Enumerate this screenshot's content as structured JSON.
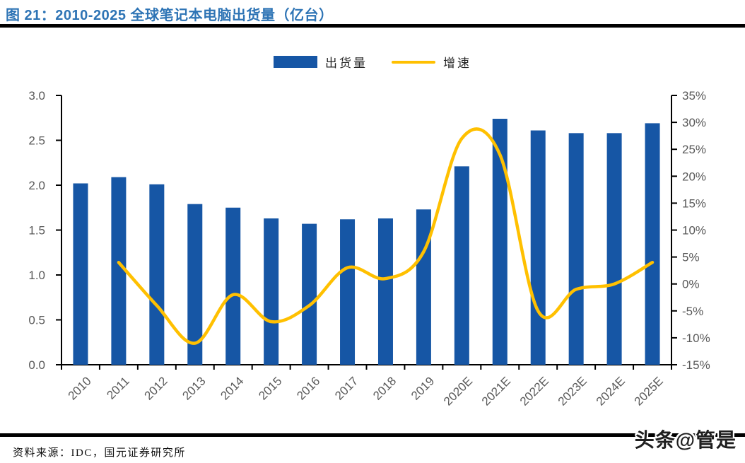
{
  "header": {
    "title": "图 21：2010-2025 全球笔记本电脑出货量（亿台）"
  },
  "legend": {
    "items": [
      {
        "label": "出货量",
        "type": "bar"
      },
      {
        "label": "增速",
        "type": "line"
      }
    ]
  },
  "colors": {
    "bar": "#1656A5",
    "line": "#FFC000",
    "title": "#2E74B5",
    "axis": "#000000",
    "tick_label": "#595959"
  },
  "chart_data": {
    "type": "combo_bar_line",
    "title": "2010-2025 全球笔记本电脑出货量（亿台）",
    "categories": [
      "2010",
      "2011",
      "2012",
      "2013",
      "2014",
      "2015",
      "2016",
      "2017",
      "2018",
      "2019",
      "2020E",
      "2021E",
      "2022E",
      "2023E",
      "2024E",
      "2025E"
    ],
    "series": [
      {
        "name": "出货量",
        "type": "bar",
        "axis": "left",
        "color": "#1656A5",
        "unit": "亿台",
        "values": [
          2.02,
          2.09,
          2.01,
          1.79,
          1.75,
          1.63,
          1.57,
          1.62,
          1.63,
          1.73,
          2.21,
          2.74,
          2.61,
          2.58,
          2.58,
          2.69
        ]
      },
      {
        "name": "增速",
        "type": "line",
        "axis": "right",
        "color": "#FFC000",
        "unit": "%",
        "values": [
          null,
          4,
          -4,
          -11,
          -2,
          -7,
          -4,
          3,
          1,
          6,
          27,
          24,
          -5,
          -1,
          0,
          4
        ]
      }
    ],
    "left_axis": {
      "min": 0,
      "max": 3,
      "tick_labels": [
        "3.0",
        "2.5",
        "2.0",
        "1.5",
        "1.0",
        "0.5",
        "0.0"
      ]
    },
    "right_axis": {
      "min": -15,
      "max": 35,
      "tick_labels": [
        "35%",
        "30%",
        "25%",
        "20%",
        "15%",
        "10%",
        "5%",
        "0%",
        "-5%",
        "-10%",
        "-15%"
      ]
    },
    "grid": false,
    "legend_position": "top",
    "line_style": "smooth"
  },
  "footer": {
    "source": "资料来源：IDC，国元证券研究所",
    "watermark": "头条@管是"
  }
}
